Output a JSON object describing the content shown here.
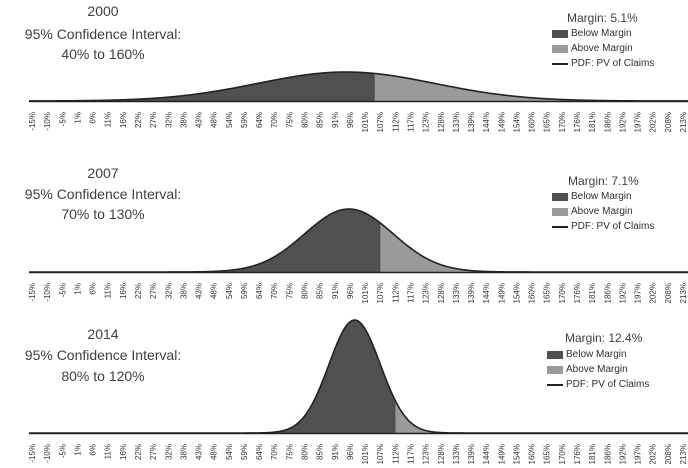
{
  "chart_data": [
    {
      "type": "area",
      "year": "2000",
      "ci_title": "95% Confidence Interval:",
      "ci_range": "40% to 160%",
      "margin_label": "Margin: 5.1%",
      "legend": [
        "Below Margin",
        "Above Margin",
        "PDF: PV of Claims"
      ],
      "colors": {
        "below": "#505050",
        "above": "#9a9a9a",
        "pdf": "#222222"
      },
      "mean": 0.95,
      "sd": 0.31,
      "split": 1.051,
      "x_ticks": [
        "-15%",
        "-10%",
        "-5%",
        "1%",
        "6%",
        "11%",
        "16%",
        "22%",
        "27%",
        "32%",
        "38%",
        "43%",
        "48%",
        "54%",
        "59%",
        "64%",
        "70%",
        "75%",
        "80%",
        "85%",
        "91%",
        "96%",
        "101%",
        "107%",
        "112%",
        "117%",
        "123%",
        "128%",
        "133%",
        "139%",
        "144%",
        "149%",
        "154%",
        "160%",
        "165%",
        "170%",
        "176%",
        "181%",
        "186%",
        "192%",
        "197%",
        "202%",
        "208%",
        "213%"
      ]
    },
    {
      "type": "area",
      "year": "2007",
      "ci_title": "95% Confidence Interval:",
      "ci_range": "70% to 130%",
      "margin_label": "Margin: 7.1%",
      "legend": [
        "Below Margin",
        "Above Margin",
        "PDF: PV of Claims"
      ],
      "colors": {
        "below": "#505050",
        "above": "#9a9a9a",
        "pdf": "#222222"
      },
      "mean": 0.96,
      "sd": 0.155,
      "split": 1.071,
      "x_ticks": [
        "-15%",
        "-10%",
        "-5%",
        "1%",
        "6%",
        "11%",
        "16%",
        "22%",
        "27%",
        "32%",
        "38%",
        "43%",
        "48%",
        "54%",
        "59%",
        "64%",
        "70%",
        "75%",
        "80%",
        "85%",
        "91%",
        "96%",
        "101%",
        "107%",
        "112%",
        "117%",
        "123%",
        "128%",
        "133%",
        "139%",
        "144%",
        "149%",
        "154%",
        "160%",
        "165%",
        "170%",
        "176%",
        "181%",
        "186%",
        "192%",
        "197%",
        "202%",
        "208%",
        "213%"
      ]
    },
    {
      "type": "area",
      "year": "2014",
      "ci_title": "95% Confidence Interval:",
      "ci_range": "80% to 120%",
      "margin_label": "Margin: 12.4%",
      "legend": [
        "Below Margin",
        "Above Margin",
        "PDF: PV of Claims"
      ],
      "colors": {
        "below": "#505050",
        "above": "#9a9a9a",
        "pdf": "#222222"
      },
      "mean": 0.98,
      "sd": 0.09,
      "split": 1.124,
      "x_ticks": [
        "-15%",
        "-10%",
        "-5%",
        "1%",
        "6%",
        "11%",
        "16%",
        "22%",
        "27%",
        "32%",
        "38%",
        "43%",
        "48%",
        "54%",
        "59%",
        "64%",
        "70%",
        "75%",
        "80%",
        "85%",
        "91%",
        "96%",
        "101%",
        "107%",
        "112%",
        "117%",
        "123%",
        "128%",
        "133%",
        "139%",
        "144%",
        "149%",
        "154%",
        "160%",
        "165%",
        "170%",
        "176%",
        "181%",
        "186%",
        "192%",
        "197%",
        "202%",
        "208%",
        "213%"
      ]
    }
  ]
}
